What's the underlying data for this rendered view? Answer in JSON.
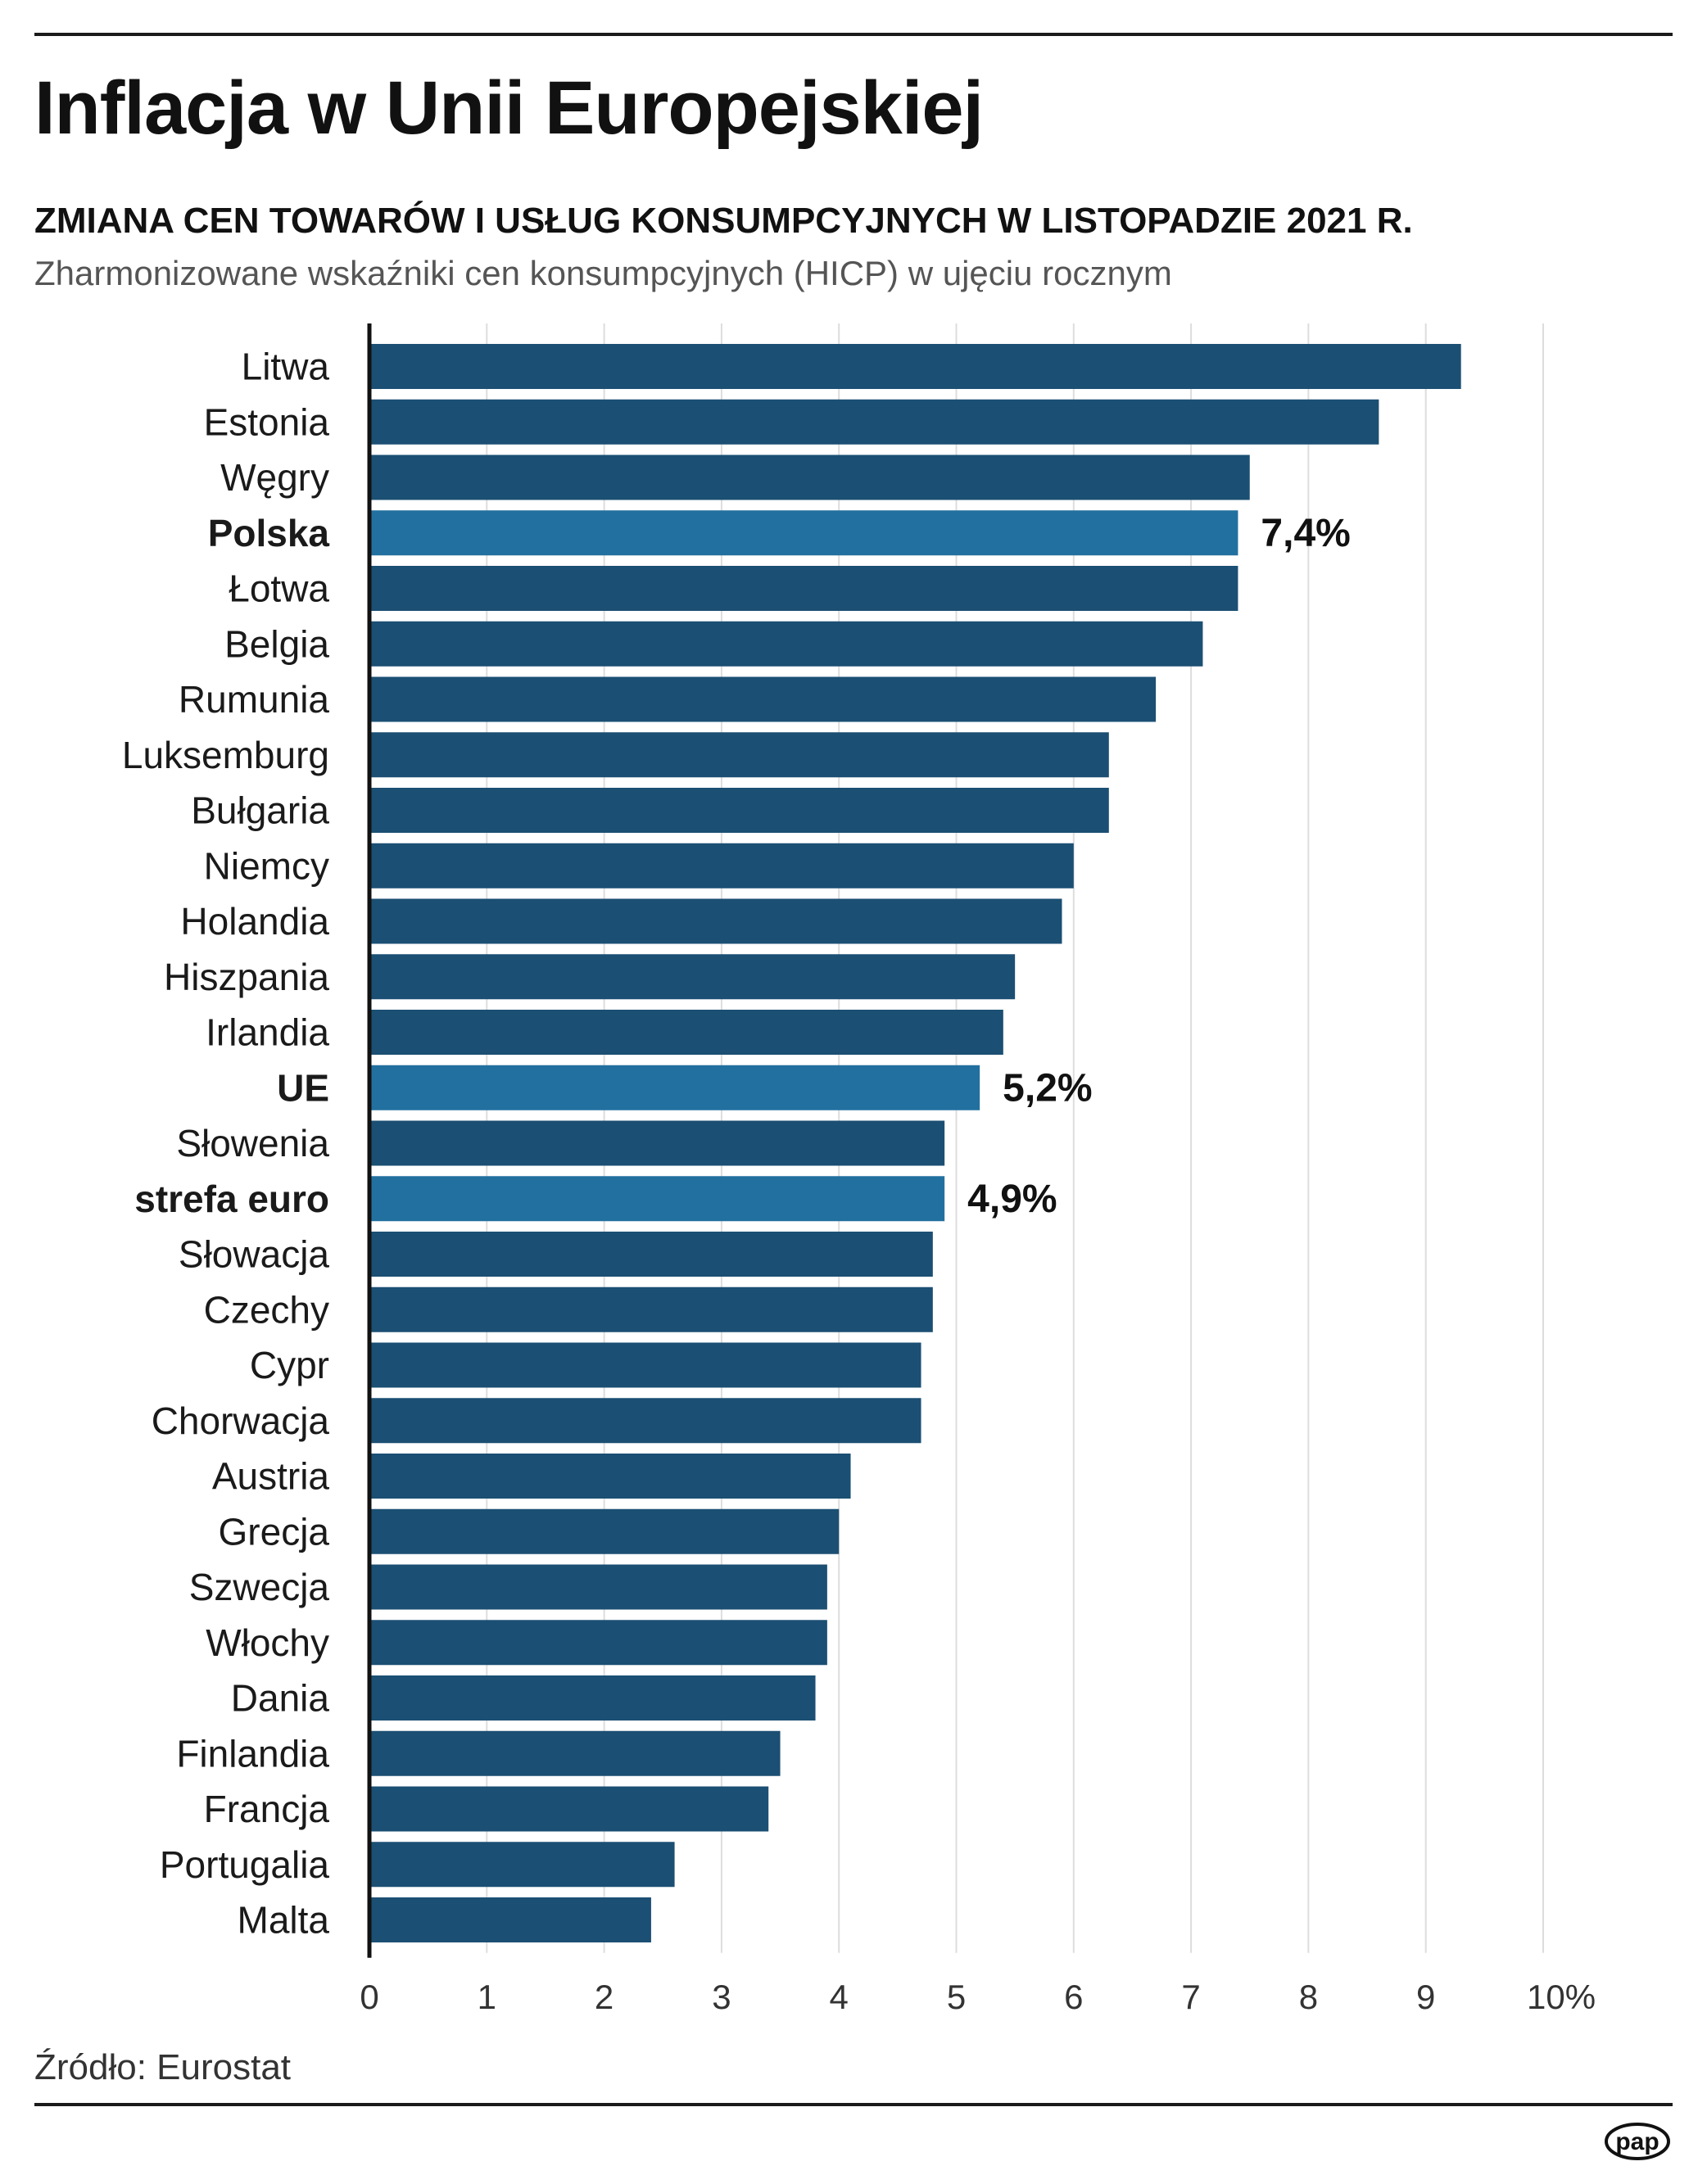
{
  "header": {
    "title": "Inflacja w Unii Europejskiej",
    "subtitle": "ZMIANA CEN TOWARÓW I USŁUG KONSUMPCYJNYCH W LISTOPADZIE 2021 R.",
    "description": "Zharmonizowane wskaźniki cen konsumpcyjnych (HICP) w ujęciu rocznym"
  },
  "footer": {
    "source": "Źródło: Eurostat",
    "logo_text": "pap"
  },
  "colors": {
    "bar": "#1b4f73",
    "highlight": "#22709f",
    "grid": "#dddddd",
    "axis": "#111111"
  },
  "chart_data": {
    "type": "bar",
    "orientation": "horizontal",
    "categories": [
      "Litwa",
      "Estonia",
      "Węgry",
      "Polska",
      "Łotwa",
      "Belgia",
      "Rumunia",
      "Luksemburg",
      "Bułgaria",
      "Niemcy",
      "Holandia",
      "Hiszpania",
      "Irlandia",
      "UE",
      "Słowenia",
      "strefa euro",
      "Słowacja",
      "Czechy",
      "Cypr",
      "Chorwacja",
      "Austria",
      "Grecja",
      "Szwecja",
      "Włochy",
      "Dania",
      "Finlandia",
      "Francja",
      "Portugalia",
      "Malta"
    ],
    "values": [
      9.3,
      8.6,
      7.5,
      7.4,
      7.4,
      7.1,
      6.7,
      6.3,
      6.3,
      6.0,
      5.9,
      5.5,
      5.4,
      5.2,
      4.9,
      4.9,
      4.8,
      4.8,
      4.7,
      4.7,
      4.1,
      4.0,
      3.9,
      3.9,
      3.8,
      3.5,
      3.4,
      2.6,
      2.4
    ],
    "highlighted": [
      "Polska",
      "UE",
      "strefa euro"
    ],
    "value_labels": {
      "Polska": "7,4%",
      "UE": "5,2%",
      "strefa euro": "4,9%"
    },
    "xlim": [
      0,
      10
    ],
    "x_ticks": [
      "0",
      "1",
      "2",
      "3",
      "4",
      "5",
      "6",
      "7",
      "8",
      "9",
      "10%"
    ],
    "grid": true
  }
}
